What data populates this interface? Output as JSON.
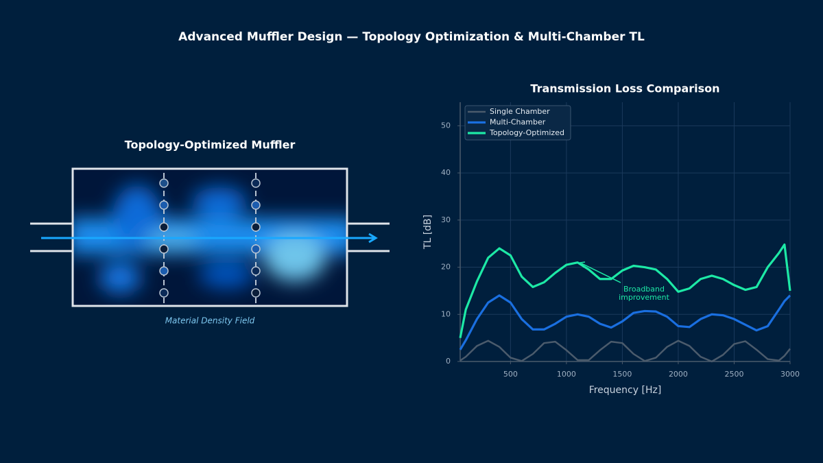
{
  "figure_title": "Advanced Muffler Design — Topology Optimization & Multi-Chamber TL",
  "diagram": {
    "title": "Topology-Optimized Muffler",
    "caption": "Material Density Field"
  },
  "chart_data": {
    "type": "line",
    "title": "Transmission Loss Comparison",
    "x_label": "Frequency [Hz]",
    "y_label": "TL [dB]",
    "x": [
      50,
      100,
      200,
      300,
      400,
      500,
      600,
      700,
      800,
      900,
      1000,
      1100,
      1200,
      1300,
      1400,
      1500,
      1600,
      1700,
      1800,
      1900,
      2000,
      2100,
      2200,
      2300,
      2400,
      2500,
      2600,
      2700,
      2800,
      2900,
      2950,
      3000
    ],
    "series": [
      {
        "name": "Single Chamber",
        "color": "#4b5b6c",
        "values": [
          0.2,
          1.0,
          3.3,
          4.4,
          3.1,
          0.8,
          0.1,
          1.6,
          3.9,
          4.2,
          2.4,
          0.3,
          0.3,
          2.4,
          4.2,
          3.9,
          1.6,
          0.1,
          0.8,
          3.1,
          4.4,
          3.3,
          1.0,
          0.0,
          1.4,
          3.7,
          4.3,
          2.5,
          0.5,
          0.2,
          1.2,
          2.7
        ]
      },
      {
        "name": "Multi-Chamber",
        "color": "#1a6fe0",
        "values": [
          2.5,
          4.5,
          9,
          12.5,
          14,
          12.5,
          9,
          6.8,
          6.8,
          8,
          9.5,
          10,
          9.5,
          8,
          7.2,
          8.5,
          10.3,
          10.7,
          10.6,
          9.5,
          7.5,
          7.3,
          9,
          10,
          9.8,
          9,
          7.8,
          6.6,
          7.5,
          11,
          12.8,
          14
        ]
      },
      {
        "name": "Topology-Optimized",
        "color": "#1de9a6",
        "values": [
          5,
          11,
          17,
          22,
          24,
          22.5,
          18,
          15.8,
          16.8,
          18.8,
          20.5,
          21,
          19.5,
          17.5,
          17.5,
          19.3,
          20.3,
          20,
          19.5,
          17.5,
          14.8,
          15.5,
          17.5,
          18.2,
          17.5,
          16.2,
          15.2,
          15.8,
          20,
          23,
          24.8,
          15
        ]
      }
    ],
    "xlim": [
      50,
      3000
    ],
    "xticks": [
      500,
      1000,
      1500,
      2000,
      2500,
      3000
    ],
    "ylim": [
      0,
      55
    ],
    "yticks": [
      0,
      10,
      20,
      30,
      40,
      50
    ],
    "grid": true,
    "legend": "upper-left",
    "annotation": [
      "Broadband",
      "improvement"
    ]
  }
}
